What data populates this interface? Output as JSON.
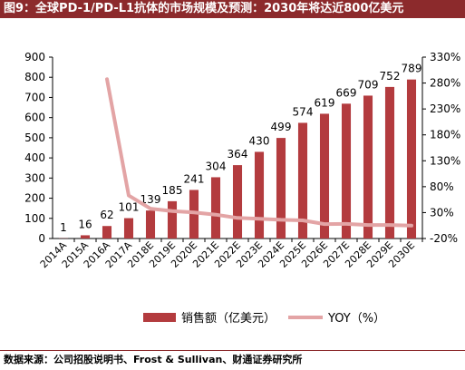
{
  "title": "图9：全球PD-1/PD-L1抗体的市场规模及预测：2030年将达近800亿美元",
  "source": "数据来源：公司招股说明书、Frost & Sullivan、财通证券研究所",
  "colors": {
    "bar": "#b33b3e",
    "line": "#e3a4a5",
    "title_bg": "#8c2a2c",
    "axis": "#000000"
  },
  "chart_data": {
    "type": "bar",
    "categories": [
      "2014A",
      "2015A",
      "2016A",
      "2017A",
      "2018E",
      "2019E",
      "2020E",
      "2021E",
      "2022E",
      "2023E",
      "2024E",
      "2025E",
      "2026E",
      "2027E",
      "2028E",
      "2029E",
      "2030E"
    ],
    "series": [
      {
        "name": "销售额（亿美元）",
        "type": "bar",
        "axis": "left",
        "values": [
          1,
          16,
          62,
          101,
          139,
          185,
          241,
          304,
          364,
          430,
          499,
          574,
          619,
          669,
          709,
          752,
          789
        ]
      },
      {
        "name": "YOY（%）",
        "type": "line",
        "axis": "right",
        "values": [
          null,
          null,
          287.5,
          62.9,
          37.6,
          33.1,
          30.3,
          26.1,
          19.7,
          18.1,
          16.0,
          15.0,
          7.8,
          8.1,
          6.0,
          6.1,
          4.9
        ]
      }
    ],
    "data_labels": [
      "1",
      "16",
      "62",
      "101",
      "139",
      "185",
      "241",
      "304",
      "364",
      "430",
      "499",
      "574",
      "619",
      "669",
      "709",
      "752",
      "789"
    ],
    "y_left": {
      "min": 0,
      "max": 900,
      "ticks": [
        "0",
        "100",
        "200",
        "300",
        "400",
        "500",
        "600",
        "700",
        "800",
        "900"
      ]
    },
    "y_right": {
      "min": -20,
      "max": 330,
      "ticks": [
        "-20%",
        "30%",
        "80%",
        "130%",
        "180%",
        "230%",
        "280%",
        "330%"
      ]
    },
    "legend": {
      "position": "bottom",
      "items": [
        "销售额（亿美元）",
        "YOY（%）"
      ]
    },
    "grid": false
  }
}
